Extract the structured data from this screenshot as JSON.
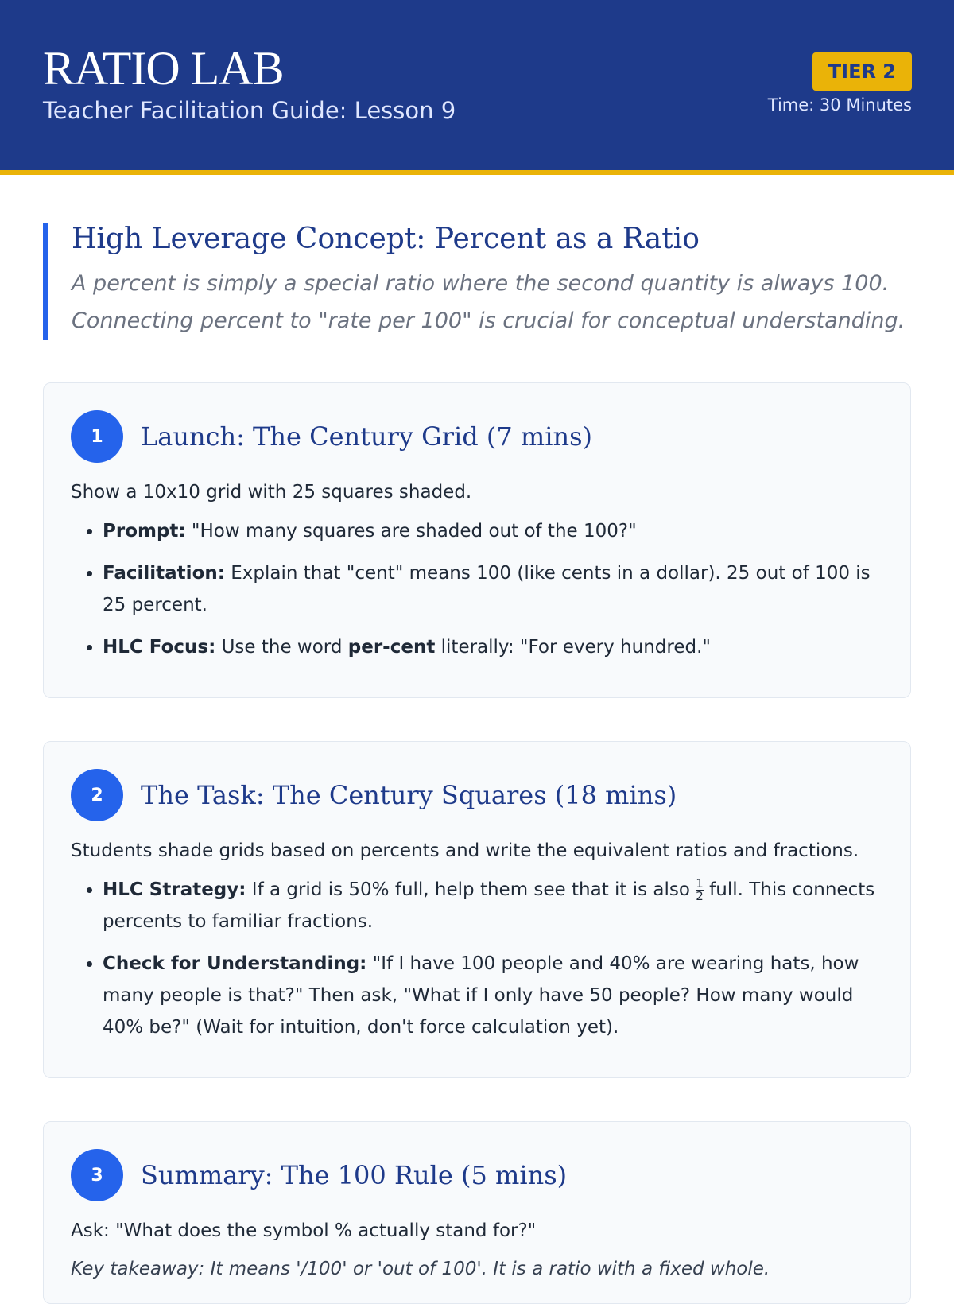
{
  "header": {
    "title": "RATIO LAB",
    "subtitle": "Teacher Facilitation Guide: Lesson 9",
    "badge": "TIER 2",
    "time": "Time: 30 Minutes"
  },
  "concept": {
    "title": "High Leverage Concept: Percent as a Ratio",
    "text": "A percent is simply a special ratio where the second quantity is always 100. Connecting percent to \"rate per 100\" is crucial for conceptual understanding."
  },
  "sections": [
    {
      "number": "1",
      "title": "Launch: The Century Grid (7 mins)",
      "intro": "Show a 10x10 grid with 25 squares shaded.",
      "bullets": [
        [
          {
            "text": "Prompt:",
            "bold": true
          },
          {
            "text": " \"How many squares are shaded out of the 100?\""
          }
        ],
        [
          {
            "text": "Facilitation:",
            "bold": true
          },
          {
            "text": " Explain that \"cent\" means 100 (like cents in a dollar). 25 out of 100 is 25 percent."
          }
        ],
        [
          {
            "text": "HLC Focus:",
            "bold": true
          },
          {
            "text": " Use the word "
          },
          {
            "text": "per-cent",
            "bold": true
          },
          {
            "text": " literally: \"For every hundred.\""
          }
        ]
      ]
    },
    {
      "number": "2",
      "title": "The Task: The Century Squares (18 mins)",
      "intro": "Students shade grids based on percents and write the equivalent ratios and fractions.",
      "bullets": [
        [
          {
            "text": "HLC Strategy:",
            "bold": true
          },
          {
            "text": " If a grid is 50% full, help them see that it is also "
          },
          {
            "numerator": "1",
            "denominator": "2"
          },
          {
            "text": " full. This connects percents to familiar fractions."
          }
        ],
        [
          {
            "text": "Check for Understanding:",
            "bold": true
          },
          {
            "text": " \"If I have 100 people and 40% are wearing hats, how many people is that?\" Then ask, \"What if I only have 50 people? How many would 40% be?\" (Wait for intuition, don't force calculation yet)."
          }
        ]
      ]
    },
    {
      "number": "3",
      "title": "Summary: The 100 Rule (5 mins)",
      "intro": "Ask: \"What does the symbol % actually stand for?\"",
      "takeaway": "Key takeaway: It means '/100' or 'out of 100'. It is a ratio with a fixed whole."
    }
  ]
}
